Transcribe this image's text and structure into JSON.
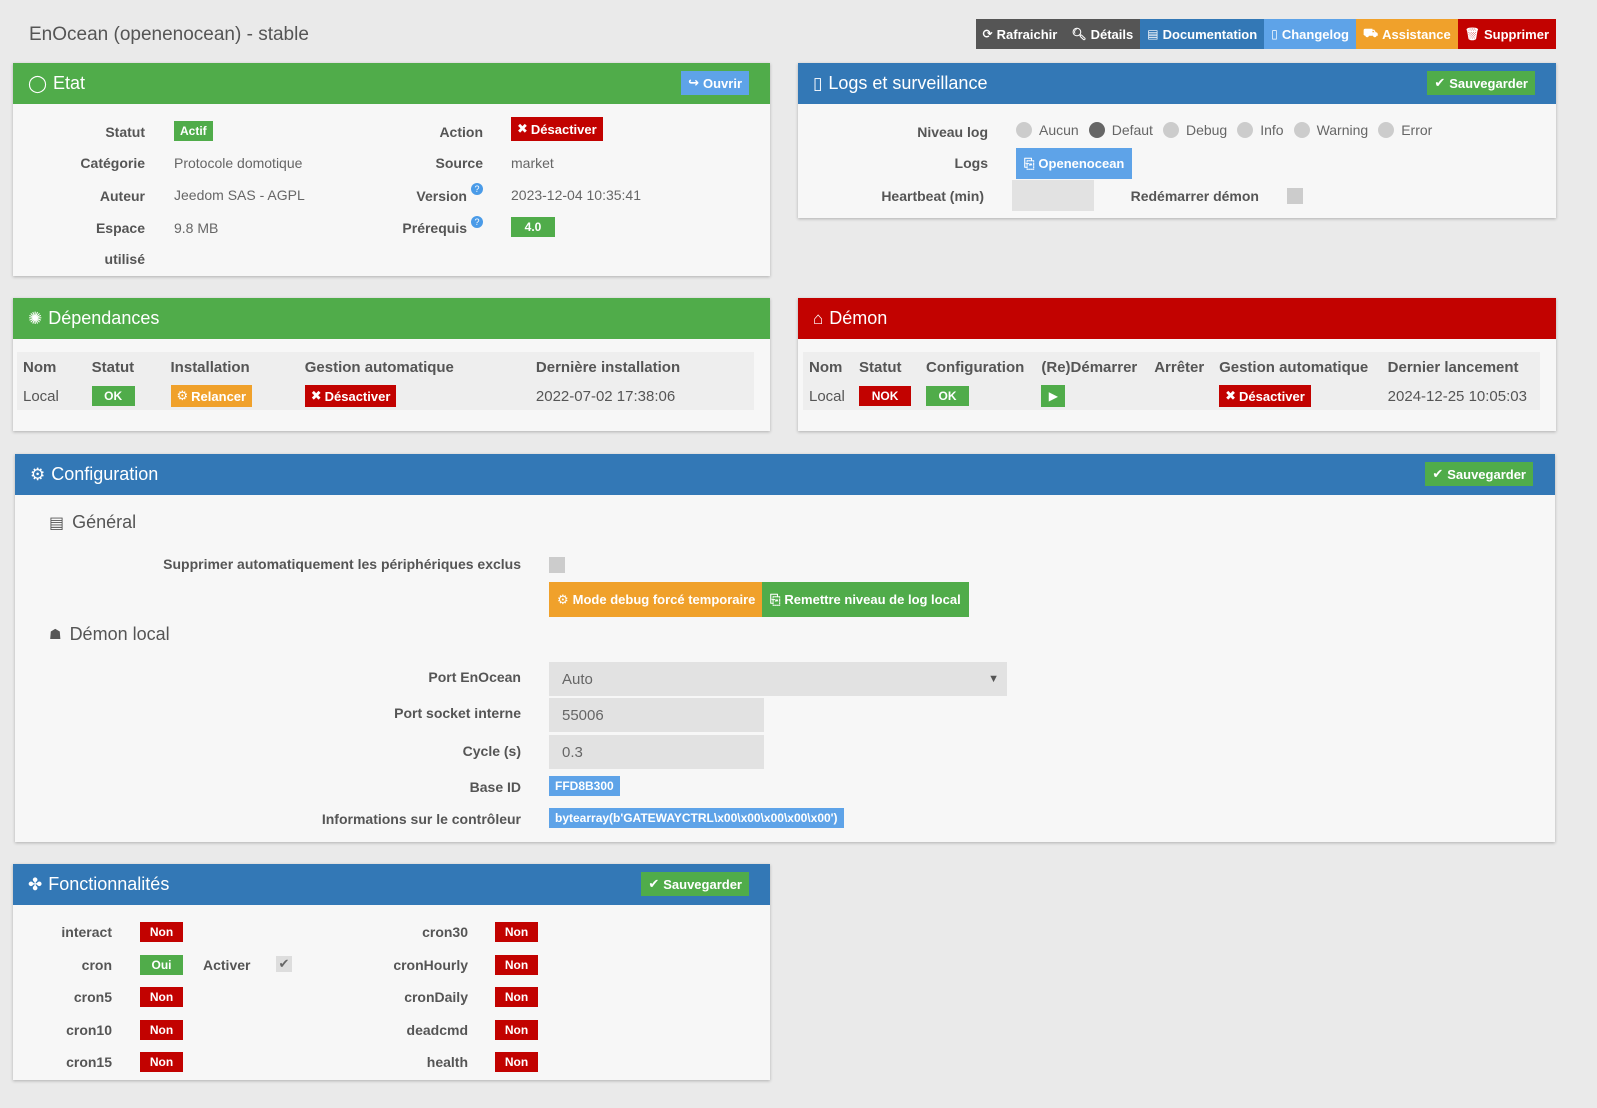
{
  "page": {
    "title": "EnOcean (openenocean) - stable"
  },
  "topbar": {
    "refresh": "Rafraichir",
    "details": "Détails",
    "documentation": "Documentation",
    "changelog": "Changelog",
    "assistance": "Assistance",
    "delete": "Supprimer"
  },
  "etat": {
    "title": "Etat",
    "open_btn": "Ouvrir",
    "statut_label": "Statut",
    "statut_value": "Actif",
    "categorie_label": "Catégorie",
    "categorie_value": "Protocole domotique",
    "auteur_label": "Auteur",
    "auteur_value": "Jeedom SAS - AGPL",
    "espace_label1": "Espace",
    "espace_label2": "utilisé",
    "espace_value": "9.8 MB",
    "action_label": "Action",
    "action_btn": "Désactiver",
    "source_label": "Source",
    "source_value": "market",
    "version_label": "Version",
    "version_value": "2023-12-04 10:35:41",
    "prerequis_label": "Prérequis",
    "prerequis_value": "4.0"
  },
  "logs": {
    "title": "Logs et surveillance",
    "save_btn": "Sauvegarder",
    "niveau_label": "Niveau log",
    "levels": [
      "Aucun",
      "Defaut",
      "Debug",
      "Info",
      "Warning",
      "Error"
    ],
    "selected_level": "Defaut",
    "logs_label": "Logs",
    "logs_btn": "Openenocean",
    "heartbeat_label": "Heartbeat (min)",
    "restart_label": "Redémarrer démon"
  },
  "dependances": {
    "title": "Dépendances",
    "headers": [
      "Nom",
      "Statut",
      "Installation",
      "Gestion automatique",
      "Dernière installation"
    ],
    "row": {
      "nom": "Local",
      "statut": "OK",
      "installation": "Relancer",
      "gestion": "Désactiver",
      "derniere": "2022-07-02 17:38:06"
    }
  },
  "demon": {
    "title": "Démon",
    "headers": [
      "Nom",
      "Statut",
      "Configuration",
      "(Re)Démarrer",
      "Arrêter",
      "Gestion automatique",
      "Dernier lancement"
    ],
    "row": {
      "nom": "Local",
      "statut": "NOK",
      "configuration": "OK",
      "gestion": "Désactiver",
      "dernier": "2024-12-25 10:05:03"
    }
  },
  "configuration": {
    "title": "Configuration",
    "save_btn": "Sauvegarder",
    "general_title": "Général",
    "supprimer_label": "Supprimer automatiquement les périphériques exclus",
    "debug_btn": "Mode debug forcé temporaire",
    "remettre_btn": "Remettre niveau de log local",
    "demon_local_title": "Démon local",
    "port_label": "Port EnOcean",
    "port_value": "Auto",
    "socket_label": "Port socket interne",
    "socket_value": "55006",
    "cycle_label": "Cycle (s)",
    "cycle_value": "0.3",
    "baseid_label": "Base ID",
    "baseid_value": "FFD8B300",
    "info_label": "Informations sur le contrôleur",
    "info_value": "bytearray(b'GATEWAYCTRL\\x00\\x00\\x00\\x00\\x00')"
  },
  "fonctionnalites": {
    "title": "Fonctionnalités",
    "save_btn": "Sauvegarder",
    "activer_label": "Activer",
    "left": [
      {
        "name": "interact",
        "value": "Non"
      },
      {
        "name": "cron",
        "value": "Oui"
      },
      {
        "name": "cron5",
        "value": "Non"
      },
      {
        "name": "cron10",
        "value": "Non"
      },
      {
        "name": "cron15",
        "value": "Non"
      }
    ],
    "right": [
      {
        "name": "cron30",
        "value": "Non"
      },
      {
        "name": "cronHourly",
        "value": "Non"
      },
      {
        "name": "cronDaily",
        "value": "Non"
      },
      {
        "name": "deadcmd",
        "value": "Non"
      },
      {
        "name": "health",
        "value": "Non"
      }
    ]
  },
  "colors": {
    "green": "#50ac4a",
    "blue": "#3378b6",
    "red": "#c20200",
    "orange": "#f0a12b",
    "light_blue": "#5ea3e8"
  }
}
